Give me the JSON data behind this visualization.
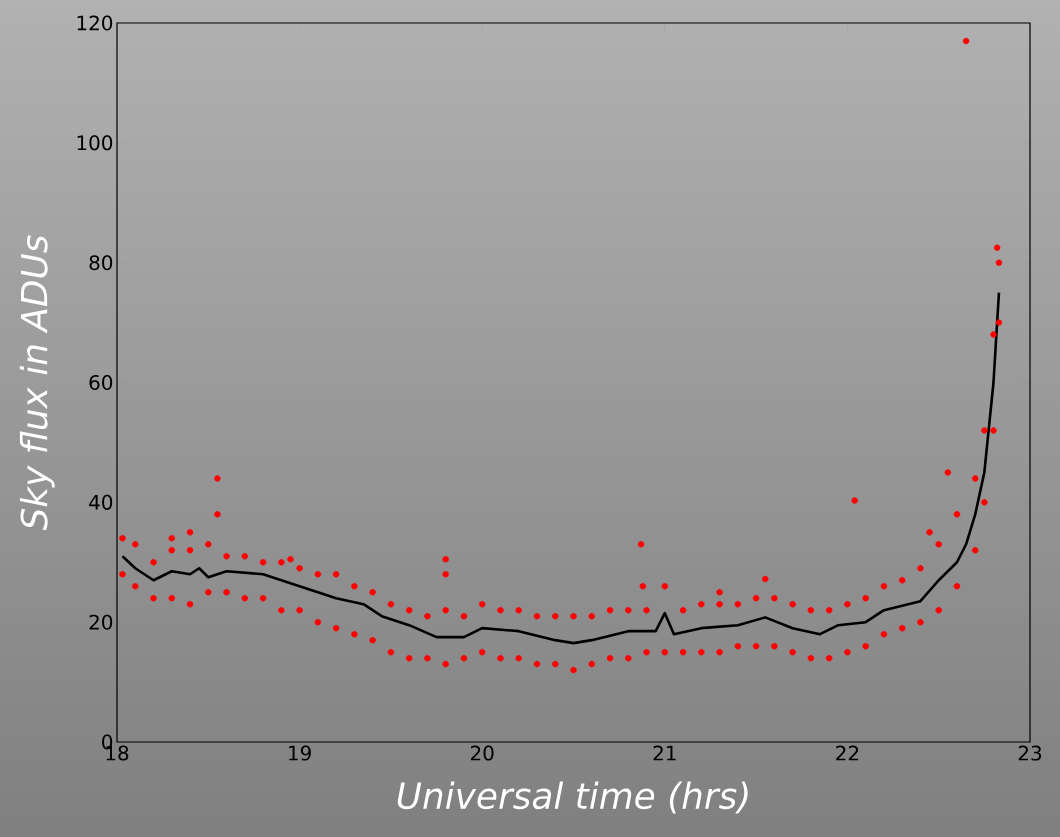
{
  "chart_data": {
    "type": "scatter",
    "xlabel": "Universal time (hrs)",
    "ylabel": "Sky flux in ADUs",
    "xlim": [
      18,
      23
    ],
    "ylim": [
      0,
      120
    ],
    "xticks": [
      18,
      19,
      20,
      21,
      22,
      23
    ],
    "yticks": [
      0,
      20,
      40,
      60,
      80,
      100,
      120
    ],
    "marker": "circle",
    "series": [
      {
        "color": "#ff0000",
        "x": [
          18.03,
          18.03,
          18.1,
          18.1,
          18.2,
          18.2,
          18.3,
          18.3,
          18.4,
          18.4,
          18.5,
          18.5,
          18.6,
          18.6,
          18.7,
          18.7,
          18.8,
          18.8,
          18.9,
          18.9,
          19.0,
          19.0,
          19.1,
          19.1,
          19.2,
          19.2,
          19.3,
          19.3,
          19.4,
          19.4,
          19.5,
          19.5,
          19.6,
          19.6,
          19.7,
          19.7,
          19.8,
          19.8,
          19.9,
          19.9,
          20.0,
          20.0,
          20.1,
          20.1,
          20.2,
          20.2,
          20.3,
          20.3,
          20.4,
          20.4,
          20.5,
          20.5,
          20.6,
          20.6,
          20.7,
          20.7,
          20.8,
          20.8,
          20.9,
          20.9,
          21.0,
          21.0,
          21.1,
          21.1,
          21.2,
          21.2,
          21.3,
          21.3,
          21.4,
          21.4,
          21.5,
          21.5,
          21.6,
          21.6,
          21.7,
          21.7,
          21.8,
          21.8,
          21.9,
          21.9,
          22.0,
          22.0,
          22.1,
          22.1,
          22.2,
          22.2,
          22.3,
          22.3,
          22.4,
          22.4,
          22.5,
          22.5,
          22.6,
          22.6,
          22.7,
          22.7,
          22.75,
          22.75,
          22.8,
          22.8,
          22.83,
          22.83,
          18.55,
          18.55,
          18.4,
          18.3,
          18.95,
          19.8,
          19.8,
          20.87,
          20.88,
          22.04,
          22.65,
          22.82,
          22.45,
          22.55,
          21.55,
          21.3
        ],
        "values": [
          34,
          28,
          33,
          26,
          30,
          24,
          32,
          24,
          32,
          23,
          33,
          25,
          31,
          25,
          31,
          24,
          30,
          24,
          30,
          22,
          29,
          22,
          28,
          20,
          28,
          19,
          26,
          18,
          25,
          17,
          23,
          15,
          22,
          14,
          21,
          14,
          22,
          13,
          21,
          14,
          23,
          15,
          22,
          14,
          22,
          14,
          21,
          13,
          21,
          13,
          21,
          12,
          21,
          13,
          22,
          14,
          22,
          14,
          22,
          15,
          26,
          15,
          22,
          15,
          23,
          15,
          23,
          15,
          23,
          16,
          24,
          16,
          24,
          16,
          23,
          15,
          22,
          14,
          22,
          14,
          23,
          15,
          24,
          16,
          26,
          18,
          27,
          19,
          29,
          20,
          33,
          22,
          38,
          26,
          44,
          32,
          52,
          40,
          68,
          52,
          80,
          70,
          44,
          38,
          35,
          34,
          30.5,
          30.5,
          28,
          33,
          26,
          40.3,
          117,
          82.5,
          35,
          45,
          27.2,
          25
        ]
      },
      {
        "type": "line",
        "marker": "none",
        "color": "#000000",
        "x": [
          18.03,
          18.1,
          18.2,
          18.3,
          18.4,
          18.45,
          18.5,
          18.6,
          18.8,
          19.0,
          19.2,
          19.35,
          19.45,
          19.6,
          19.75,
          19.9,
          20.0,
          20.2,
          20.4,
          20.5,
          20.6,
          20.8,
          20.95,
          21.0,
          21.05,
          21.2,
          21.4,
          21.55,
          21.7,
          21.85,
          21.95,
          22.1,
          22.2,
          22.4,
          22.5,
          22.6,
          22.65,
          22.7,
          22.75,
          22.8,
          22.83
        ],
        "values": [
          31,
          29,
          27,
          28.5,
          28,
          29,
          27.5,
          28.5,
          28,
          26,
          24,
          23,
          21,
          19.5,
          17.5,
          17.5,
          19,
          18.5,
          17,
          16.5,
          17,
          18.5,
          18.5,
          21.5,
          18,
          19,
          19.5,
          20.8,
          19,
          18,
          19.5,
          20,
          22,
          23.5,
          27,
          30,
          33,
          38,
          45,
          60,
          75
        ]
      }
    ]
  }
}
